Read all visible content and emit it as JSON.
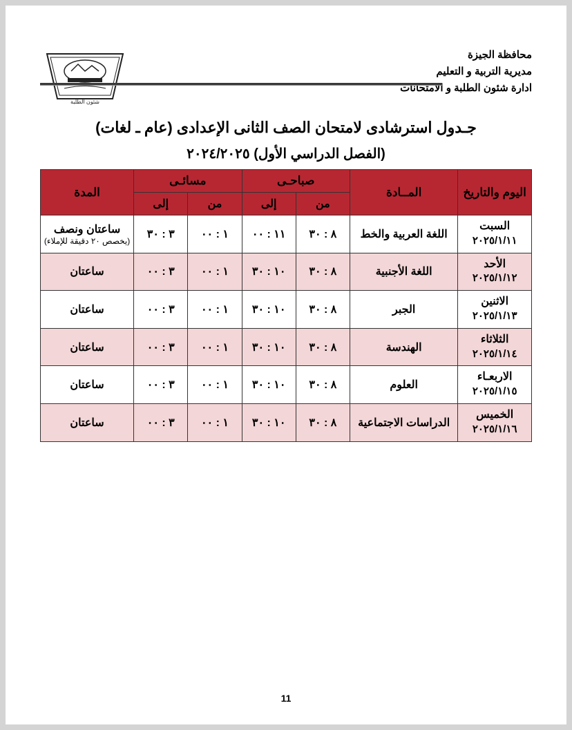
{
  "header": {
    "line1": "محافظة الجيزة",
    "line2": "مديرية التربية و التعليم",
    "line3": "ادارة شئون الطلبة و الامتحانات"
  },
  "title": {
    "main": "جـدول استرشادى لامتحان الصف الثانى الإعدادى (عام ـ لغات)",
    "sub": "(الفصل الدراسي الأول) ٢٠٢٤/٢٠٢٥"
  },
  "table": {
    "headers": {
      "date": "اليوم والتاريخ",
      "subject": "المــادة",
      "morning": "صباحـى",
      "evening": "مسائـى",
      "from": "من",
      "to": "إلى",
      "duration": "المدة"
    },
    "rows": [
      {
        "day": "السبت",
        "date": "٢٠٢٥/١/١١",
        "subject": "اللغة العربية والخط",
        "m_from": "٨ : ٣٠",
        "m_to": "١١ : ٠٠",
        "e_from": "١ : ٠٠",
        "e_to": "٣ : ٣٠",
        "duration": "ساعتان ونصف",
        "note": "(يخصص ٢٠ دقيقة للإملاء)",
        "alt": false
      },
      {
        "day": "الأحد",
        "date": "٢٠٢٥/١/١٢",
        "subject": "اللغة الأجنبية",
        "m_from": "٨ : ٣٠",
        "m_to": "١٠ : ٣٠",
        "e_from": "١ : ٠٠",
        "e_to": "٣ : ٠٠",
        "duration": "ساعتان",
        "note": "",
        "alt": true
      },
      {
        "day": "الاثنين",
        "date": "٢٠٢٥/١/١٣",
        "subject": "الجبر",
        "m_from": "٨ : ٣٠",
        "m_to": "١٠ : ٣٠",
        "e_from": "١ : ٠٠",
        "e_to": "٣ : ٠٠",
        "duration": "ساعتان",
        "note": "",
        "alt": false
      },
      {
        "day": "الثلاثاء",
        "date": "٢٠٢٥/١/١٤",
        "subject": "الهندسة",
        "m_from": "٨ : ٣٠",
        "m_to": "١٠ : ٣٠",
        "e_from": "١ : ٠٠",
        "e_to": "٣ : ٠٠",
        "duration": "ساعتان",
        "note": "",
        "alt": true
      },
      {
        "day": "الاربعـاء",
        "date": "٢٠٢٥/١/١٥",
        "subject": "العلوم",
        "m_from": "٨ : ٣٠",
        "m_to": "١٠ : ٣٠",
        "e_from": "١ : ٠٠",
        "e_to": "٣ : ٠٠",
        "duration": "ساعتان",
        "note": "",
        "alt": false
      },
      {
        "day": "الخميس",
        "date": "٢٠٢٥/١/١٦",
        "subject": "الدراسات الاجتماعية",
        "m_from": "٨ : ٣٠",
        "m_to": "١٠ : ٣٠",
        "e_from": "١ : ٠٠",
        "e_to": "٣ : ٠٠",
        "duration": "ساعتان",
        "note": "",
        "alt": true
      }
    ]
  },
  "page_number": "11",
  "colors": {
    "header_bg": "#b72732",
    "alt_row_bg": "#f3d6d7",
    "border": "#333333",
    "page_bg": "#ffffff",
    "body_bg": "#d4d4d4"
  }
}
